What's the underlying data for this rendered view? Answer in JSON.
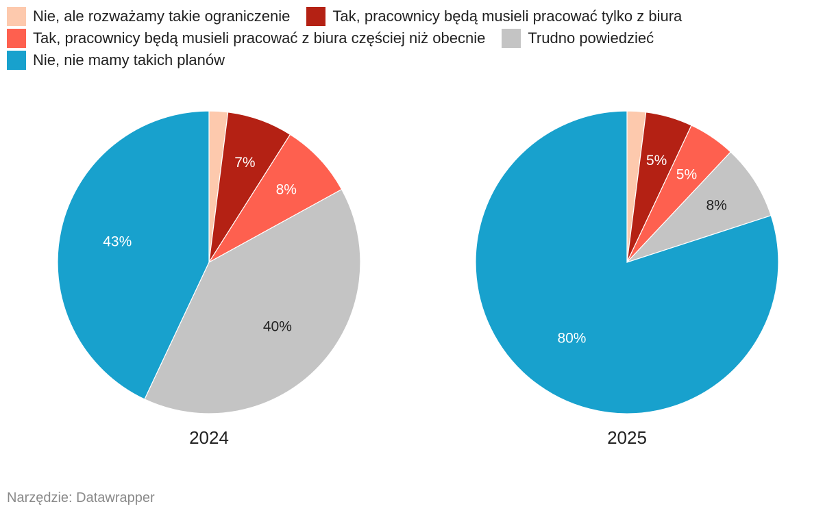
{
  "legend": {
    "items": [
      {
        "label": "Nie, ale rozważamy takie ograniczenie",
        "color": "#fdc9ad"
      },
      {
        "label": "Tak, pracownicy będą musieli pracować tylko z biura",
        "color": "#b42114"
      },
      {
        "label": "Tak, pracownicy będą musieli pracować z biura częściej niż obecnie",
        "color": "#fe604f"
      },
      {
        "label": "Trudno powiedzieć",
        "color": "#c4c4c4"
      },
      {
        "label": "Nie, nie mamy takich planów",
        "color": "#18a1cd"
      }
    ]
  },
  "chart_data": [
    {
      "type": "pie",
      "title": "2024",
      "categories": [
        "Nie, ale rozważamy takie ograniczenie",
        "Tak, pracownicy będą musieli pracować tylko z biura",
        "Tak, pracownicy będą musieli pracować z biura częściej niż obecnie",
        "Trudno powiedzieć",
        "Nie, nie mamy takich planów"
      ],
      "values": [
        2,
        7,
        8,
        40,
        43
      ],
      "data_labels": [
        "",
        "7%",
        "8%",
        "40%",
        "43%"
      ],
      "colors": [
        "#fdc9ad",
        "#b42114",
        "#fe604f",
        "#c4c4c4",
        "#18a1cd"
      ],
      "label_colors": [
        "#222222",
        "#ffffff",
        "#ffffff",
        "#222222",
        "#ffffff"
      ]
    },
    {
      "type": "pie",
      "title": "2025",
      "categories": [
        "Nie, ale rozważamy takie ograniczenie",
        "Tak, pracownicy będą musieli pracować tylko z biura",
        "Tak, pracownicy będą musieli pracować z biura częściej niż obecnie",
        "Trudno powiedzieć",
        "Nie, nie mamy takich planów"
      ],
      "values": [
        2,
        5,
        5,
        8,
        80
      ],
      "data_labels": [
        "",
        "5%",
        "5%",
        "8%",
        "80%"
      ],
      "colors": [
        "#fdc9ad",
        "#b42114",
        "#fe604f",
        "#c4c4c4",
        "#18a1cd"
      ],
      "label_colors": [
        "#222222",
        "#ffffff",
        "#ffffff",
        "#222222",
        "#ffffff"
      ]
    }
  ],
  "footer": {
    "source": "Narzędzie: Datawrapper"
  }
}
